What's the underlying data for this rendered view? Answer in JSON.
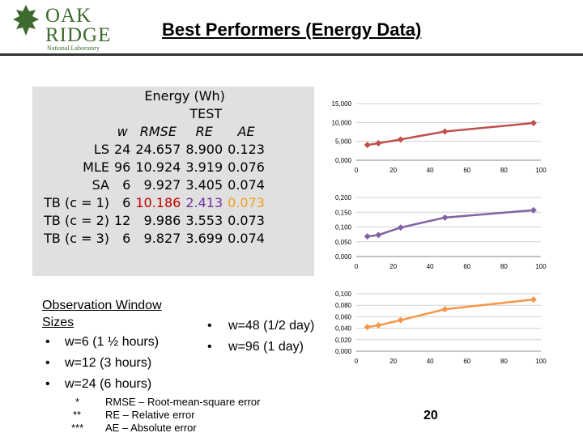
{
  "logo": {
    "line1": "OAK",
    "line2": "RIDGE",
    "line3": "National Laboratory"
  },
  "title": "Best Performers (Energy Data)",
  "table": {
    "header1": "Energy (Wh)",
    "header2": "TEST",
    "cols": [
      "w",
      "RMSE",
      "RE",
      "AE"
    ],
    "rows": [
      {
        "label": "LS",
        "w": "24",
        "rmse": "24.657",
        "re": "8.900",
        "ae": "0.123"
      },
      {
        "label": "MLE",
        "w": "96",
        "rmse": "10.924",
        "re": "3.919",
        "ae": "0.076"
      },
      {
        "label": "SA",
        "w": "6",
        "rmse": "9.927",
        "re": "3.405",
        "ae": "0.074"
      },
      {
        "label": "TB (c = 1)",
        "w": "6",
        "rmse": "10.186",
        "re": "2.413",
        "ae": "0.073"
      },
      {
        "label": "TB (c = 2)",
        "w": "12",
        "rmse": "9.986",
        "re": "3.553",
        "ae": "0.073"
      },
      {
        "label": "TB (c = 3)",
        "w": "6",
        "rmse": "9.827",
        "re": "3.699",
        "ae": "0.074"
      }
    ]
  },
  "observation": {
    "title": "Observation Window Sizes",
    "left": [
      "w=6 (1 ½ hours)",
      "w=12 (3 hours)",
      "w=24 (6 hours)"
    ],
    "right": [
      "w=48 (1/2 day)",
      "w=96 (1 day)"
    ],
    "bullet": "•"
  },
  "footnotes": [
    {
      "mark": "*",
      "text": "RMSE – Root-mean-square error"
    },
    {
      "mark": "**",
      "text": "RE – Relative error"
    },
    {
      "mark": "***",
      "text": "AE – Absolute error"
    }
  ],
  "page_number": "20",
  "colors": {
    "red": "#c0504d",
    "purple": "#8064a2",
    "orange": "#f79646",
    "accent_red": "#c00000",
    "accent_purple": "#7030a0",
    "accent_orange": "#f0a020"
  },
  "chart_data": [
    {
      "type": "line",
      "x": [
        6,
        12,
        24,
        48,
        96
      ],
      "y": [
        4040,
        4500,
        5500,
        7600,
        9850
      ],
      "yticks": [
        "0,000",
        "5,000",
        "10,000",
        "15,000"
      ],
      "ylim": [
        0,
        15000
      ],
      "xticks": [
        "0",
        "20",
        "40",
        "60",
        "80",
        "100"
      ],
      "xlim": [
        0,
        100
      ],
      "grid": true,
      "color": "#c0504d"
    },
    {
      "type": "line",
      "x": [
        6,
        12,
        24,
        48,
        96
      ],
      "y": [
        0.068,
        0.073,
        0.098,
        0.132,
        0.157
      ],
      "yticks": [
        "0,000",
        "0,050",
        "0,100",
        "0,150",
        "0,200"
      ],
      "ylim": [
        0,
        0.2
      ],
      "xticks": [
        "0",
        "20",
        "40",
        "60",
        "80",
        "100"
      ],
      "xlim": [
        0,
        100
      ],
      "grid": true,
      "color": "#8064a2"
    },
    {
      "type": "line",
      "x": [
        6,
        12,
        24,
        48,
        96
      ],
      "y": [
        0.042,
        0.045,
        0.054,
        0.073,
        0.09
      ],
      "yticks": [
        "0,000",
        "0,020",
        "0,040",
        "0,060",
        "0,080",
        "0,100"
      ],
      "ylim": [
        0,
        0.1
      ],
      "xticks": [
        "0",
        "20",
        "40",
        "60",
        "80",
        "100"
      ],
      "xlim": [
        0,
        100
      ],
      "grid": true,
      "color": "#f79646"
    }
  ]
}
